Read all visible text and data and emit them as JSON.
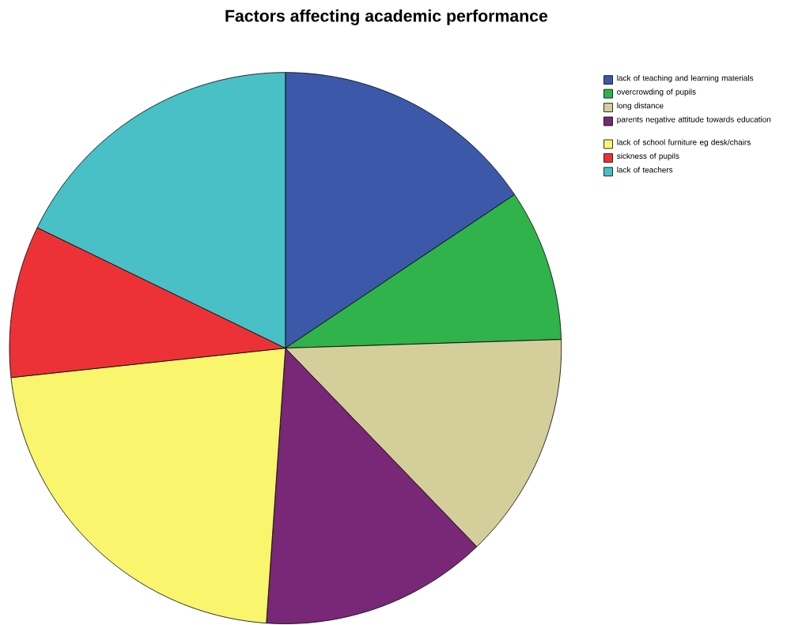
{
  "chart_data": {
    "type": "pie",
    "title": "Factors affecting academic performance",
    "categories": [
      "lack of teaching and learning materials",
      "overcrowding of pupils",
      "long distance",
      "parents negative attitude towards education",
      "lack of school furniture eg desk/chairs",
      "sickness of pupils",
      "lack of  teachers"
    ],
    "values": [
      15.6,
      8.9,
      13.3,
      13.3,
      22.2,
      8.9,
      17.8
    ],
    "colors": [
      "#3c58a8",
      "#2fb34a",
      "#d4ce9a",
      "#782877",
      "#f9f56c",
      "#ed3237",
      "#48c0c6"
    ],
    "legend": "top right"
  }
}
